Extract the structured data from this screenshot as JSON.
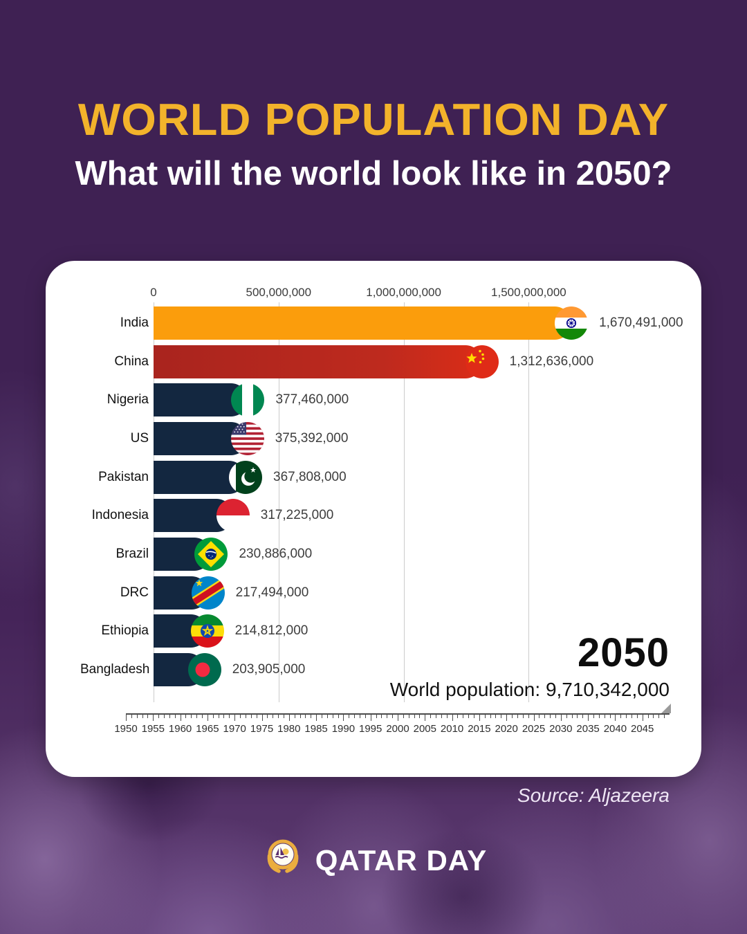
{
  "header": {
    "title": "WORLD POPULATION DAY",
    "subtitle": "What will the world look like in 2050?"
  },
  "chart_data": {
    "type": "bar",
    "orientation": "horizontal",
    "unit": "people",
    "x_axis": {
      "ticks": [
        {
          "label": "0",
          "value": 0
        },
        {
          "label": "500,000,000",
          "value": 500000000
        },
        {
          "label": "1,000,000,000",
          "value": 1000000000
        },
        {
          "label": "1,500,000,000",
          "value": 1500000000
        }
      ],
      "display_max": 2110000000,
      "grid": true
    },
    "categories": [
      "India",
      "China",
      "Nigeria",
      "US",
      "Pakistan",
      "Indonesia",
      "Brazil",
      "DRC",
      "Ethiopia",
      "Bangladesh"
    ],
    "values": [
      1670491000,
      1312636000,
      377460000,
      375392000,
      367808000,
      317225000,
      230886000,
      217494000,
      214812000,
      203905000
    ],
    "value_labels": [
      "1,670,491,000",
      "1,312,636,000",
      "377,460,000",
      "375,392,000",
      "367,808,000",
      "317,225,000",
      "230,886,000",
      "217,494,000",
      "214,812,000",
      "203,905,000"
    ],
    "bar_colors": [
      "#FB9D0C",
      "linear-gradient(90deg,#A9241E,#BE2A1E 70%,#DA2D17)",
      "#132740",
      "#132740",
      "#132740",
      "#132740",
      "#132740",
      "#132740",
      "#132740",
      "#132740"
    ],
    "flags": [
      "india",
      "china",
      "nigeria",
      "us",
      "pakistan",
      "indonesia",
      "brazil",
      "drc",
      "ethiopia",
      "bangladesh"
    ],
    "year": "2050",
    "world_population_label": "World population:",
    "world_population_value": "9,710,342,000",
    "timeline_start": 1950,
    "timeline_end": 2050,
    "timeline_years": [
      1950,
      1955,
      1960,
      1965,
      1970,
      1975,
      1980,
      1985,
      1990,
      1995,
      2000,
      2005,
      2010,
      2015,
      2020,
      2025,
      2030,
      2035,
      2040,
      2045
    ]
  },
  "footer": {
    "source": "Source: Aljazeera",
    "brand": "QATAR DAY"
  },
  "colors": {
    "background": "#3F2153",
    "title": "#F3B32B",
    "card": "#FFFFFF",
    "gridline": "#CBCBCB",
    "axis_text": "#3A3A3A",
    "label_text": "#111111",
    "value_text": "#3D3D3D",
    "year_text": "#0D0D0D",
    "timeline_text": "#2F2F2F",
    "source_text": "#EFE6F5",
    "logo_gold": "#EBAD3F"
  }
}
